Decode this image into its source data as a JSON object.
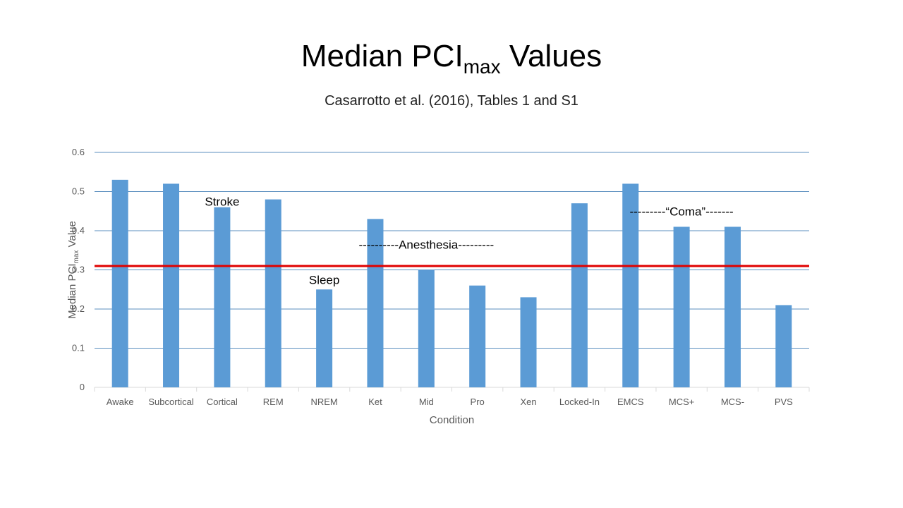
{
  "header": {
    "title_main": "Median PCI",
    "title_sub": "max",
    "title_tail": " Values",
    "subtitle": "Casarrotto et al. (2016), Tables 1 and S1"
  },
  "chart_data": {
    "type": "bar",
    "categories": [
      "Awake",
      "Subcortical",
      "Cortical",
      "REM",
      "NREM",
      "Ket",
      "Mid",
      "Pro",
      "Xen",
      "Locked-In",
      "EMCS",
      "MCS+",
      "MCS-",
      "PVS"
    ],
    "values": [
      0.53,
      0.52,
      0.46,
      0.48,
      0.25,
      0.43,
      0.3,
      0.26,
      0.23,
      0.47,
      0.52,
      0.41,
      0.41,
      0.21
    ],
    "xlabel": "Condition",
    "ylabel": {
      "main": "Median PCI",
      "sub": "max",
      "tail": " Value"
    },
    "ylim": [
      0,
      0.6
    ],
    "yticks": [
      "0",
      "0.1",
      "0.2",
      "0.3",
      "0.4",
      "0.5",
      "0.6"
    ],
    "grid": true,
    "bar_color": "#5b9bd5",
    "threshold": {
      "value": 0.31,
      "color": "#e00000"
    },
    "annotations": [
      {
        "text": "Stroke",
        "category": "Cortical",
        "y": 0.475
      },
      {
        "text": "Sleep",
        "category": "NREM",
        "y": 0.275
      },
      {
        "text": "----------Anesthesia---------",
        "category": "Mid",
        "y": 0.365
      },
      {
        "text": "---------“Coma”-------",
        "category": "MCS+",
        "y": 0.45
      }
    ]
  }
}
